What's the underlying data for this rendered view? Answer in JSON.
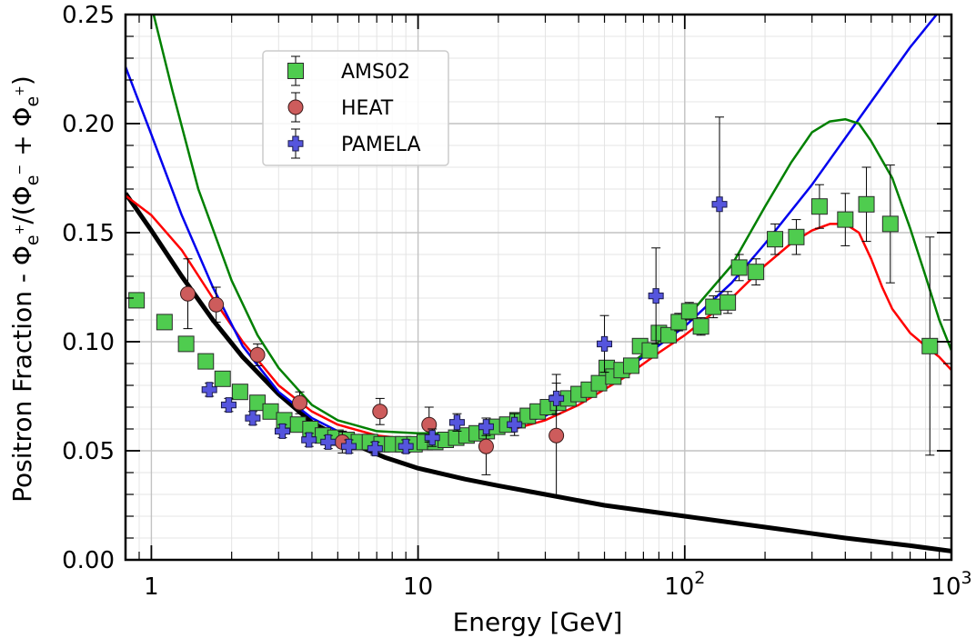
{
  "chart_data": {
    "type": "scatter",
    "title": "",
    "xlabel": "Energy [GeV]",
    "ylabel": "Positron Fraction - Φe+/(Φe− + Φe+)",
    "ylabel_parts": {
      "prefix": "Positron Fraction - Φ",
      "e": "e",
      "plus": "+",
      "mid1": "/(Φ",
      "minus": "−",
      "mid2": " + Φ",
      "close": ")"
    },
    "x_scale": "log",
    "xlim": [
      0.8,
      1000
    ],
    "ylim": [
      0.0,
      0.25
    ],
    "x_ticks": [
      {
        "value": 1,
        "label": "1"
      },
      {
        "value": 10,
        "label": "10"
      },
      {
        "value": 100,
        "label": "10",
        "exp": "2"
      },
      {
        "value": 1000,
        "label": "10",
        "exp": "3"
      }
    ],
    "y_ticks": [
      {
        "value": 0.0,
        "label": "0.00"
      },
      {
        "value": 0.05,
        "label": "0.05"
      },
      {
        "value": 0.1,
        "label": "0.10"
      },
      {
        "value": 0.15,
        "label": "0.15"
      },
      {
        "value": 0.2,
        "label": "0.20"
      },
      {
        "value": 0.25,
        "label": "0.25"
      }
    ],
    "grid": true,
    "legend_position": "top-left",
    "series": [
      {
        "name": "AMS02",
        "kind": "points",
        "marker": "square",
        "color": "#4fcc4f",
        "points": [
          {
            "x": 0.88,
            "y": 0.119,
            "err": 0.002
          },
          {
            "x": 1.12,
            "y": 0.109,
            "err": 0.002
          },
          {
            "x": 1.35,
            "y": 0.099,
            "err": 0.002
          },
          {
            "x": 1.6,
            "y": 0.091,
            "err": 0.002
          },
          {
            "x": 1.85,
            "y": 0.083,
            "err": 0.002
          },
          {
            "x": 2.15,
            "y": 0.077,
            "err": 0.002
          },
          {
            "x": 2.5,
            "y": 0.072,
            "err": 0.002
          },
          {
            "x": 2.8,
            "y": 0.068,
            "err": 0.002
          },
          {
            "x": 3.15,
            "y": 0.064,
            "err": 0.002
          },
          {
            "x": 3.55,
            "y": 0.062,
            "err": 0.002
          },
          {
            "x": 3.95,
            "y": 0.06,
            "err": 0.002
          },
          {
            "x": 4.4,
            "y": 0.057,
            "err": 0.002
          },
          {
            "x": 4.9,
            "y": 0.056,
            "err": 0.002
          },
          {
            "x": 5.4,
            "y": 0.055,
            "err": 0.002
          },
          {
            "x": 6.0,
            "y": 0.054,
            "err": 0.002
          },
          {
            "x": 6.6,
            "y": 0.054,
            "err": 0.002
          },
          {
            "x": 7.3,
            "y": 0.053,
            "err": 0.002
          },
          {
            "x": 8.0,
            "y": 0.053,
            "err": 0.002
          },
          {
            "x": 8.8,
            "y": 0.053,
            "err": 0.002
          },
          {
            "x": 9.7,
            "y": 0.053,
            "err": 0.002
          },
          {
            "x": 10.6,
            "y": 0.054,
            "err": 0.002
          },
          {
            "x": 11.6,
            "y": 0.054,
            "err": 0.002
          },
          {
            "x": 12.7,
            "y": 0.055,
            "err": 0.002
          },
          {
            "x": 13.9,
            "y": 0.056,
            "err": 0.002
          },
          {
            "x": 15.2,
            "y": 0.057,
            "err": 0.002
          },
          {
            "x": 16.6,
            "y": 0.058,
            "err": 0.002
          },
          {
            "x": 18.1,
            "y": 0.059,
            "err": 0.002
          },
          {
            "x": 19.8,
            "y": 0.061,
            "err": 0.002
          },
          {
            "x": 21.6,
            "y": 0.062,
            "err": 0.002
          },
          {
            "x": 23.6,
            "y": 0.064,
            "err": 0.002
          },
          {
            "x": 25.8,
            "y": 0.066,
            "err": 0.002
          },
          {
            "x": 28.1,
            "y": 0.068,
            "err": 0.002
          },
          {
            "x": 30.7,
            "y": 0.07,
            "err": 0.002
          },
          {
            "x": 33.5,
            "y": 0.072,
            "err": 0.002
          },
          {
            "x": 36.6,
            "y": 0.074,
            "err": 0.002
          },
          {
            "x": 40.0,
            "y": 0.076,
            "err": 0.002
          },
          {
            "x": 43.7,
            "y": 0.078,
            "err": 0.002
          },
          {
            "x": 47.7,
            "y": 0.081,
            "err": 0.003
          },
          {
            "x": 51.0,
            "y": 0.088,
            "err": 0.003
          },
          {
            "x": 54.0,
            "y": 0.084,
            "err": 0.003
          },
          {
            "x": 58.0,
            "y": 0.087,
            "err": 0.003
          },
          {
            "x": 63.0,
            "y": 0.089,
            "err": 0.003
          },
          {
            "x": 68.0,
            "y": 0.098,
            "err": 0.003
          },
          {
            "x": 74.0,
            "y": 0.096,
            "err": 0.003
          },
          {
            "x": 80.0,
            "y": 0.104,
            "err": 0.003
          },
          {
            "x": 87.0,
            "y": 0.103,
            "err": 0.003
          },
          {
            "x": 95.0,
            "y": 0.109,
            "err": 0.004
          },
          {
            "x": 104.0,
            "y": 0.114,
            "err": 0.004
          },
          {
            "x": 115.0,
            "y": 0.107,
            "err": 0.004
          },
          {
            "x": 128.0,
            "y": 0.116,
            "err": 0.005
          },
          {
            "x": 145.0,
            "y": 0.118,
            "err": 0.005
          },
          {
            "x": 160.0,
            "y": 0.134,
            "err": 0.006
          },
          {
            "x": 185.0,
            "y": 0.132,
            "err": 0.006
          },
          {
            "x": 218.0,
            "y": 0.147,
            "err": 0.007
          },
          {
            "x": 262.0,
            "y": 0.148,
            "err": 0.008
          },
          {
            "x": 320.0,
            "y": 0.162,
            "err": 0.01
          },
          {
            "x": 400.0,
            "y": 0.156,
            "err": 0.012
          },
          {
            "x": 480.0,
            "y": 0.163,
            "err": 0.017
          },
          {
            "x": 590.0,
            "y": 0.154,
            "err": 0.027
          },
          {
            "x": 830.0,
            "y": 0.098,
            "err": 0.05
          }
        ]
      },
      {
        "name": "HEAT",
        "kind": "points",
        "marker": "circle",
        "color": "#cd5c5c",
        "points": [
          {
            "x": 1.37,
            "y": 0.122,
            "err": 0.016
          },
          {
            "x": 1.75,
            "y": 0.117,
            "err": 0.008
          },
          {
            "x": 2.5,
            "y": 0.094,
            "err": 0.005
          },
          {
            "x": 3.6,
            "y": 0.072,
            "err": 0.005
          },
          {
            "x": 5.2,
            "y": 0.054,
            "err": 0.005
          },
          {
            "x": 7.2,
            "y": 0.068,
            "err": 0.006
          },
          {
            "x": 11.0,
            "y": 0.062,
            "err": 0.008
          },
          {
            "x": 18.0,
            "y": 0.052,
            "err": 0.013
          },
          {
            "x": 33.0,
            "y": 0.057,
            "err": 0.028
          }
        ]
      },
      {
        "name": "PAMELA",
        "kind": "points",
        "marker": "plus",
        "color": "#5555dd",
        "points": [
          {
            "x": 1.65,
            "y": 0.078,
            "err": 0.003
          },
          {
            "x": 1.95,
            "y": 0.071,
            "err": 0.003
          },
          {
            "x": 2.4,
            "y": 0.065,
            "err": 0.003
          },
          {
            "x": 3.1,
            "y": 0.059,
            "err": 0.003
          },
          {
            "x": 3.9,
            "y": 0.055,
            "err": 0.003
          },
          {
            "x": 4.6,
            "y": 0.054,
            "err": 0.003
          },
          {
            "x": 5.5,
            "y": 0.052,
            "err": 0.003
          },
          {
            "x": 6.9,
            "y": 0.051,
            "err": 0.003
          },
          {
            "x": 9.0,
            "y": 0.052,
            "err": 0.003
          },
          {
            "x": 11.3,
            "y": 0.056,
            "err": 0.004
          },
          {
            "x": 14.0,
            "y": 0.063,
            "err": 0.004
          },
          {
            "x": 18.0,
            "y": 0.061,
            "err": 0.004
          },
          {
            "x": 23.0,
            "y": 0.062,
            "err": 0.005
          },
          {
            "x": 33.0,
            "y": 0.074,
            "err": 0.007
          },
          {
            "x": 50.0,
            "y": 0.099,
            "err": 0.013
          },
          {
            "x": 78.0,
            "y": 0.121,
            "err": 0.022
          },
          {
            "x": 135.0,
            "y": 0.163,
            "err": 0.04
          }
        ]
      },
      {
        "kind": "line",
        "color": "#000000",
        "width": 5,
        "points": [
          [
            0.8,
            0.168
          ],
          [
            1.0,
            0.151
          ],
          [
            1.3,
            0.13
          ],
          [
            1.7,
            0.11
          ],
          [
            2.2,
            0.093
          ],
          [
            3.0,
            0.076
          ],
          [
            4.0,
            0.063
          ],
          [
            5.5,
            0.054
          ],
          [
            7.5,
            0.047
          ],
          [
            10.0,
            0.042
          ],
          [
            15.0,
            0.037
          ],
          [
            20.0,
            0.034
          ],
          [
            30.0,
            0.03
          ],
          [
            50.0,
            0.025
          ],
          [
            100.0,
            0.02
          ],
          [
            200.0,
            0.015
          ],
          [
            400.0,
            0.01
          ],
          [
            700.0,
            0.0065
          ],
          [
            1000.0,
            0.004
          ]
        ]
      },
      {
        "kind": "line",
        "color": "#ff0000",
        "width": 2.5,
        "points": [
          [
            0.8,
            0.167
          ],
          [
            1.0,
            0.158
          ],
          [
            1.3,
            0.142
          ],
          [
            1.7,
            0.12
          ],
          [
            2.2,
            0.1
          ],
          [
            3.0,
            0.08
          ],
          [
            4.0,
            0.068
          ],
          [
            5.0,
            0.062
          ],
          [
            7.0,
            0.057
          ],
          [
            10.0,
            0.055
          ],
          [
            15.0,
            0.056
          ],
          [
            20.0,
            0.058
          ],
          [
            30.0,
            0.064
          ],
          [
            40.0,
            0.071
          ],
          [
            60.0,
            0.084
          ],
          [
            80.0,
            0.095
          ],
          [
            100.0,
            0.103
          ],
          [
            150.0,
            0.12
          ],
          [
            200.0,
            0.135
          ],
          [
            250.0,
            0.145
          ],
          [
            300.0,
            0.151
          ],
          [
            350.0,
            0.154
          ],
          [
            400.0,
            0.154
          ],
          [
            450.0,
            0.15
          ],
          [
            500.0,
            0.138
          ],
          [
            550.0,
            0.125
          ],
          [
            600.0,
            0.115
          ],
          [
            700.0,
            0.104
          ],
          [
            800.0,
            0.098
          ],
          [
            900.0,
            0.093
          ],
          [
            1000.0,
            0.087
          ]
        ]
      },
      {
        "kind": "line",
        "color": "#0000ee",
        "width": 2.5,
        "points": [
          [
            0.8,
            0.226
          ],
          [
            1.0,
            0.195
          ],
          [
            1.3,
            0.158
          ],
          [
            1.7,
            0.125
          ],
          [
            2.2,
            0.098
          ],
          [
            3.0,
            0.077
          ],
          [
            4.0,
            0.065
          ],
          [
            5.0,
            0.059
          ],
          [
            7.0,
            0.055
          ],
          [
            10.0,
            0.054
          ],
          [
            15.0,
            0.056
          ],
          [
            20.0,
            0.059
          ],
          [
            30.0,
            0.066
          ],
          [
            50.0,
            0.08
          ],
          [
            100.0,
            0.107
          ],
          [
            150.0,
            0.127
          ],
          [
            200.0,
            0.145
          ],
          [
            300.0,
            0.172
          ],
          [
            500.0,
            0.21
          ],
          [
            700.0,
            0.235
          ],
          [
            880.0,
            0.25
          ]
        ]
      },
      {
        "kind": "line",
        "color": "#008000",
        "width": 2.5,
        "points": [
          [
            1.02,
            0.25
          ],
          [
            1.2,
            0.215
          ],
          [
            1.5,
            0.17
          ],
          [
            2.0,
            0.128
          ],
          [
            2.5,
            0.103
          ],
          [
            3.0,
            0.088
          ],
          [
            4.0,
            0.071
          ],
          [
            5.0,
            0.064
          ],
          [
            7.0,
            0.059
          ],
          [
            10.0,
            0.058
          ],
          [
            15.0,
            0.058
          ],
          [
            20.0,
            0.06
          ],
          [
            30.0,
            0.067
          ],
          [
            40.0,
            0.074
          ],
          [
            60.0,
            0.088
          ],
          [
            80.0,
            0.1
          ],
          [
            100.0,
            0.11
          ],
          [
            150.0,
            0.135
          ],
          [
            200.0,
            0.162
          ],
          [
            250.0,
            0.182
          ],
          [
            300.0,
            0.196
          ],
          [
            350.0,
            0.201
          ],
          [
            400.0,
            0.202
          ],
          [
            450.0,
            0.2
          ],
          [
            500.0,
            0.192
          ],
          [
            600.0,
            0.175
          ],
          [
            700.0,
            0.152
          ],
          [
            800.0,
            0.13
          ],
          [
            900.0,
            0.11
          ],
          [
            1000.0,
            0.096
          ]
        ]
      }
    ]
  }
}
